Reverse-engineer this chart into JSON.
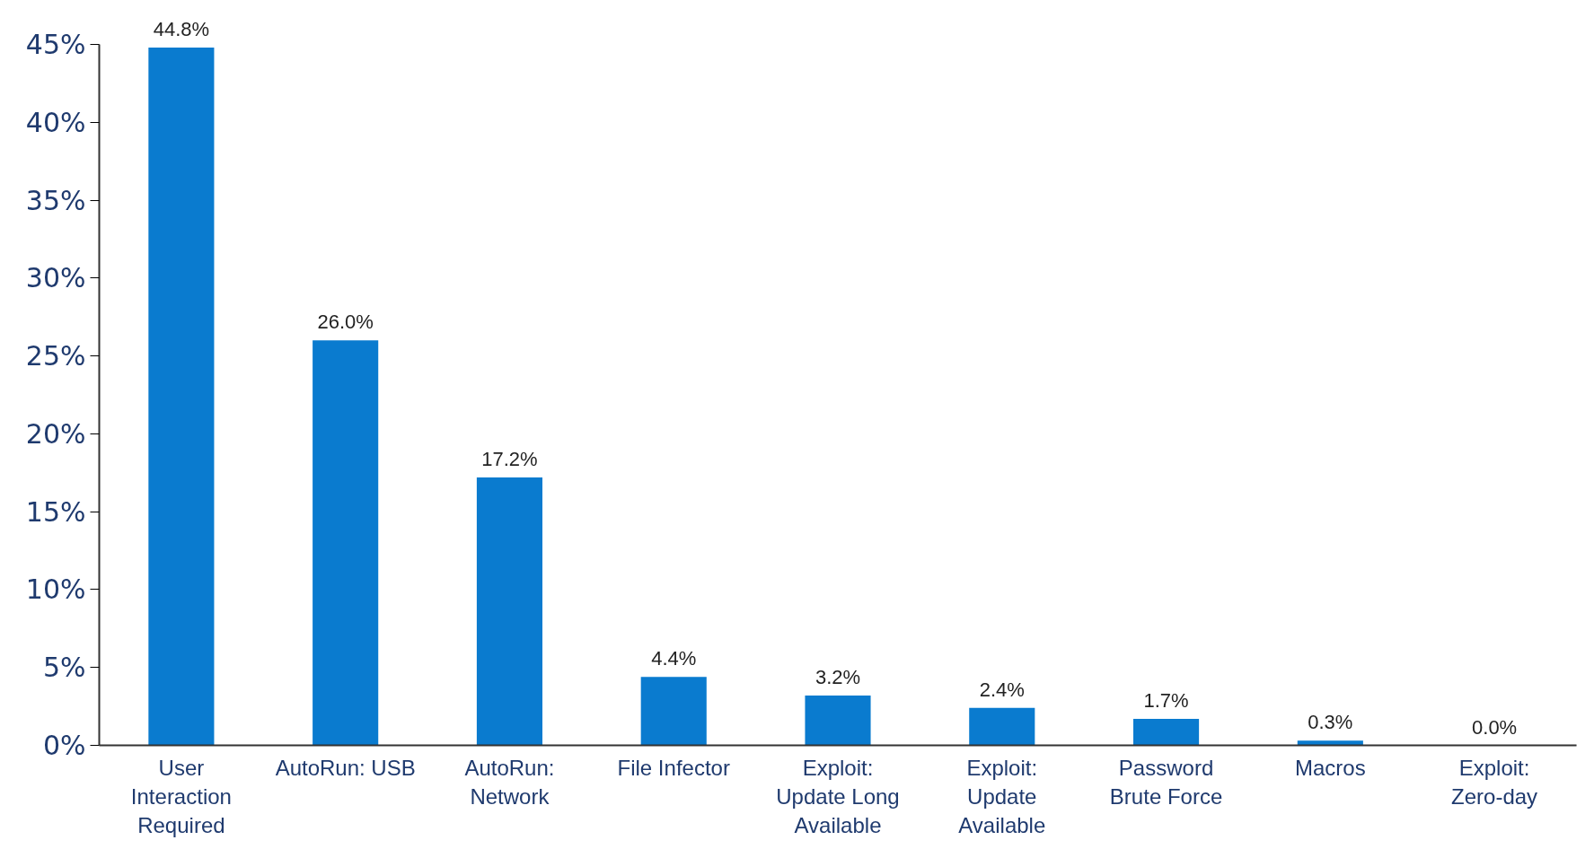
{
  "chart_data": {
    "type": "bar",
    "categories": [
      "User Interaction Required",
      "AutoRun: USB",
      "AutoRun: Network",
      "File Infector",
      "Exploit: Update Long Available",
      "Exploit: Update Available",
      "Password Brute Force",
      "Macros",
      "Exploit: Zero-day"
    ],
    "values": [
      44.8,
      26.0,
      17.2,
      4.4,
      3.2,
      2.4,
      1.7,
      0.3,
      0.0
    ],
    "value_labels": [
      "44.8%",
      "26.0%",
      "17.2%",
      "4.4%",
      "3.2%",
      "2.4%",
      "1.7%",
      "0.3%",
      "0.0%"
    ],
    "color": "#0a7bcf",
    "ylim": [
      0,
      45
    ],
    "yticks": [
      {
        "value": 0,
        "label": "0%"
      },
      {
        "value": 5,
        "label": "5%"
      },
      {
        "value": 10,
        "label": "10%"
      },
      {
        "value": 15,
        "label": "15%"
      },
      {
        "value": 20,
        "label": "20%"
      },
      {
        "value": 25,
        "label": "25%"
      },
      {
        "value": 30,
        "label": "30%"
      },
      {
        "value": 35,
        "label": "35%"
      },
      {
        "value": 40,
        "label": "40%"
      },
      {
        "value": 45,
        "label": "45%"
      }
    ],
    "grid": false
  }
}
